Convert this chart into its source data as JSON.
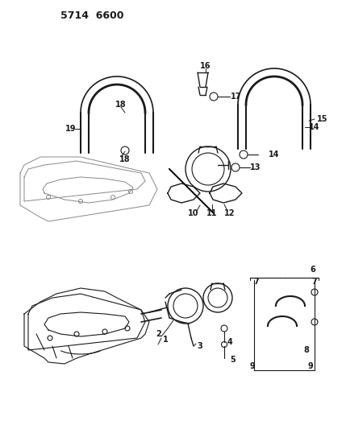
{
  "title": "5714 6600",
  "background_color": "#ffffff",
  "line_color": "#1a1a1a",
  "text_color": "#1a1a1a",
  "fig_width": 4.29,
  "fig_height": 5.33,
  "dpi": 100
}
